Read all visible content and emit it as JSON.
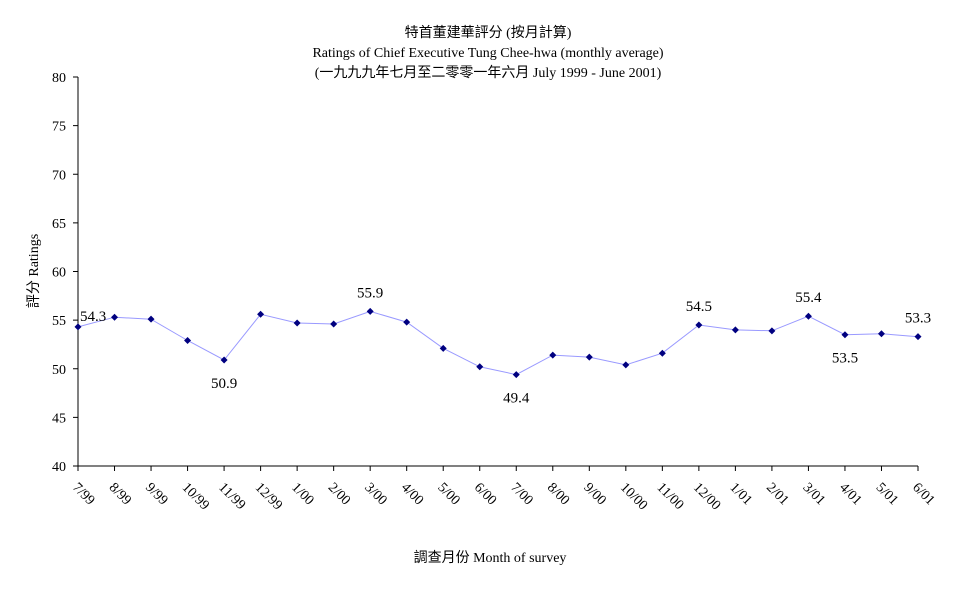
{
  "chart_data": {
    "type": "line",
    "title_lines": [
      "特首董建華評分 (按月計算)",
      "Ratings of Chief Executive Tung Chee-hwa (monthly average)",
      "(一九九九年七月至二零零一年六月 July 1999 - June 2001)"
    ],
    "xlabel": "調查月份 Month of survey",
    "ylabel": "評分 Ratings",
    "ylim": [
      40,
      80
    ],
    "yticks": [
      40,
      45,
      50,
      55,
      60,
      65,
      70,
      75,
      80
    ],
    "grid": false,
    "categories": [
      "7/99",
      "8/99",
      "9/99",
      "10/99",
      "11/99",
      "12/99",
      "1/00",
      "2/00",
      "3/00",
      "4/00",
      "5/00",
      "6/00",
      "7/00",
      "8/00",
      "9/00",
      "10/00",
      "11/00",
      "12/00",
      "1/01",
      "2/01",
      "3/01",
      "4/01",
      "5/01",
      "6/01"
    ],
    "values": [
      54.3,
      55.3,
      55.1,
      52.9,
      50.9,
      55.6,
      54.7,
      54.6,
      55.9,
      54.8,
      52.1,
      50.2,
      49.4,
      51.4,
      51.2,
      50.4,
      51.6,
      54.5,
      54.0,
      53.9,
      55.4,
      53.5,
      53.6,
      53.3
    ],
    "data_labels": [
      {
        "index": 0,
        "text": "54.3",
        "pos": "right-above"
      },
      {
        "index": 4,
        "text": "50.9",
        "pos": "below"
      },
      {
        "index": 8,
        "text": "55.9",
        "pos": "above"
      },
      {
        "index": 12,
        "text": "49.4",
        "pos": "below"
      },
      {
        "index": 17,
        "text": "54.5",
        "pos": "above"
      },
      {
        "index": 20,
        "text": "55.4",
        "pos": "above"
      },
      {
        "index": 21,
        "text": "53.5",
        "pos": "below"
      },
      {
        "index": 23,
        "text": "53.3",
        "pos": "above"
      }
    ],
    "colors": {
      "line": "#9999ff",
      "marker": "#000080",
      "axis": "#000000"
    }
  }
}
